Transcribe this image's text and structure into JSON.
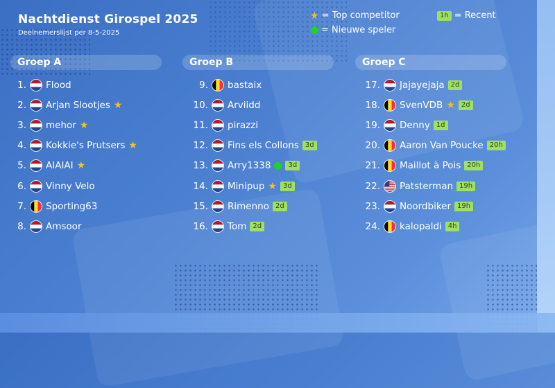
{
  "header": {
    "title": "Nachtdienst Girospel 2025",
    "subtitle": "Deelnemerslijst per 8-5-2025"
  },
  "legend": {
    "top": "= Top competitor",
    "recent_badge": "1h",
    "recent": "= Recent",
    "new": "= Nieuwe speler"
  },
  "colors": {
    "star": "#f3c127",
    "new_dot": "#1ed41e",
    "badge": "#9fe064"
  },
  "groups": [
    {
      "title": "Groep A",
      "players": [
        {
          "rank": "1.",
          "flag": "nl",
          "name": "Flood"
        },
        {
          "rank": "2.",
          "flag": "nl",
          "name": "Arjan Slootjes",
          "star": true
        },
        {
          "rank": "3.",
          "flag": "nl",
          "name": "mehor",
          "star": true
        },
        {
          "rank": "4.",
          "flag": "nl",
          "name": "Kokkie's Prutsers",
          "star": true
        },
        {
          "rank": "5.",
          "flag": "nl",
          "name": "AIAIAI",
          "star": true
        },
        {
          "rank": "6.",
          "flag": "nl",
          "name": "Vinny Velo"
        },
        {
          "rank": "7.",
          "flag": "be",
          "name": "Sporting63"
        },
        {
          "rank": "8.",
          "flag": "nl",
          "name": "Amsoor"
        }
      ]
    },
    {
      "title": "Groep B",
      "players": [
        {
          "rank": "9.",
          "flag": "be",
          "name": "bastaix"
        },
        {
          "rank": "10.",
          "flag": "nl",
          "name": "Arviidd"
        },
        {
          "rank": "11.",
          "flag": "nl",
          "name": "pirazzi"
        },
        {
          "rank": "12.",
          "flag": "nl",
          "name": "Fins els Collons",
          "badge": "3d"
        },
        {
          "rank": "13.",
          "flag": "nl",
          "name": "Arry1338",
          "new": true,
          "badge": "3d"
        },
        {
          "rank": "14.",
          "flag": "nl",
          "name": "Minipup",
          "star": true,
          "badge": "3d"
        },
        {
          "rank": "15.",
          "flag": "nl",
          "name": "Rimenno",
          "badge": "2d"
        },
        {
          "rank": "16.",
          "flag": "nl",
          "name": "Tom",
          "badge": "2d"
        }
      ]
    },
    {
      "title": "Groep C",
      "players": [
        {
          "rank": "17.",
          "flag": "nl",
          "name": "Jajayejaja",
          "badge": "2d"
        },
        {
          "rank": "18.",
          "flag": "be",
          "name": "SvenVDB",
          "star": true,
          "badge": "2d"
        },
        {
          "rank": "19.",
          "flag": "nl",
          "name": "Denny",
          "badge": "1d"
        },
        {
          "rank": "20.",
          "flag": "be",
          "name": "Aaron Van Poucke",
          "badge": "20h"
        },
        {
          "rank": "21.",
          "flag": "be",
          "name": "Maillot à Pois",
          "badge": "20h"
        },
        {
          "rank": "22.",
          "flag": "us",
          "name": "Patsterman",
          "badge": "19h"
        },
        {
          "rank": "23.",
          "flag": "nl",
          "name": "Noordbiker",
          "badge": "19h"
        },
        {
          "rank": "24.",
          "flag": "be",
          "name": "kalopaldi",
          "badge": "4h"
        }
      ]
    }
  ]
}
